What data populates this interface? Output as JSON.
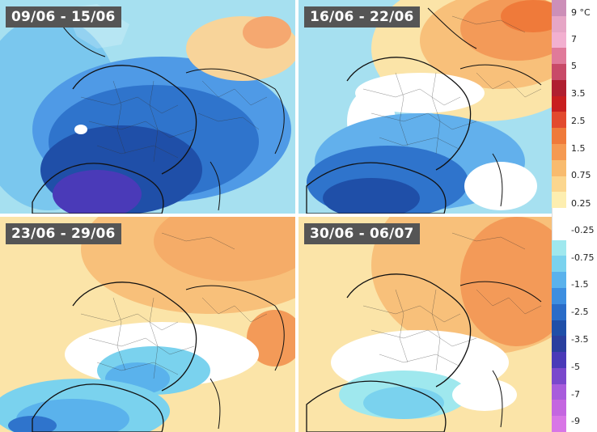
{
  "panels": [
    {
      "label": "09/06 - 15/06",
      "tone": "cold"
    },
    {
      "label": "16/06 - 22/06",
      "tone": "mixed"
    },
    {
      "label": "23/06 - 29/06",
      "tone": "warm"
    },
    {
      "label": "30/06 - 06/07",
      "tone": "warm"
    }
  ],
  "legend": {
    "unit_label": "9 °C",
    "ticks": [
      "7",
      "5",
      "3.5",
      "2.5",
      "1.5",
      "0.75",
      "0.25",
      "-0.25",
      "-0.75",
      "-1.5",
      "-2.5",
      "-3.5",
      "-5",
      "-7",
      "-9"
    ],
    "colors": [
      "#cc8fb8",
      "#e6a6c6",
      "#f2b0d0",
      "#e07a9a",
      "#c84a68",
      "#b02030",
      "#c81f1f",
      "#e24a2e",
      "#ef7a3a",
      "#f59a52",
      "#f8bb6e",
      "#fbd68e",
      "#fdeeb0",
      "#ffffff",
      "#ffffff",
      "#9fe8ee",
      "#7ad2ee",
      "#5ab2ec",
      "#3d8ee0",
      "#2a6cc8",
      "#1f4fa8",
      "#2a3f9e",
      "#4a3ab8",
      "#7a48cc",
      "#a85cdc",
      "#c466e0",
      "#d876e6"
    ]
  },
  "palette": {
    "cold_bg": "#9adcee",
    "cold_mid": "#62b0ec",
    "cold_deep": "#2a6cc8",
    "cold_core": "#1f4fa8",
    "cold_violet": "#5a4ab8",
    "warm_light": "#fbe4a8",
    "warm_mid": "#f8c07a",
    "warm_deep": "#f39a58",
    "warm_hot": "#ef7a3a",
    "border_color": "#111111"
  }
}
